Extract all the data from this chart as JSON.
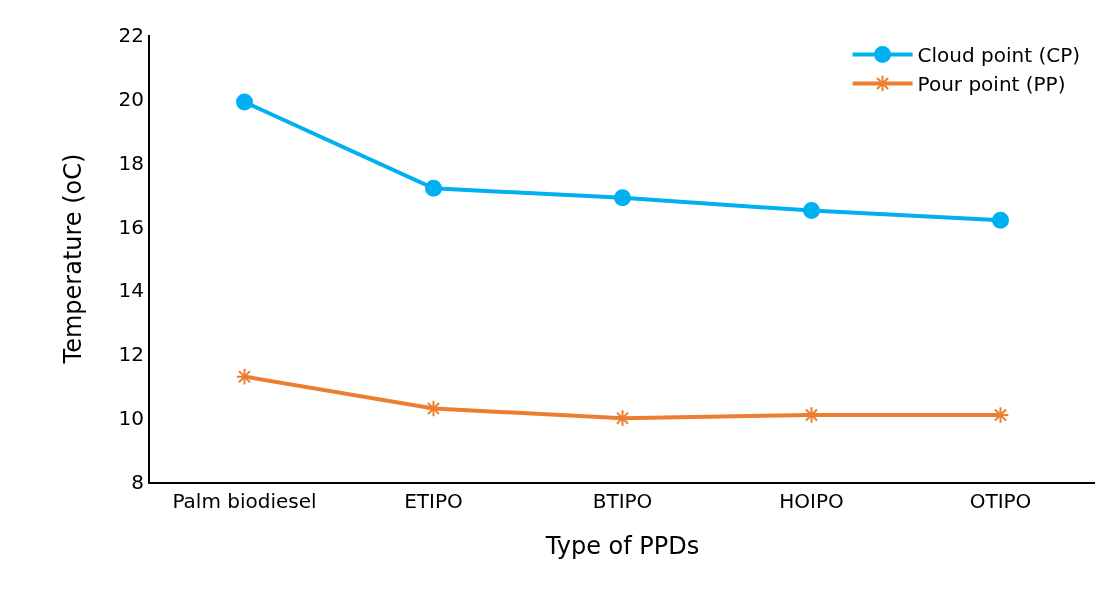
{
  "chart_data": {
    "type": "line",
    "xlabel": "Type of PPDs",
    "ylabel": "Temperature (oC)",
    "categories": [
      "Palm biodiesel",
      "ETIPO",
      "BTIPO",
      "HOIPO",
      "OTIPO"
    ],
    "series": [
      {
        "name": "Cloud point (CP)",
        "color": "#00b0f0",
        "marker": "circle",
        "values": [
          19.9,
          17.2,
          16.9,
          16.5,
          16.2
        ]
      },
      {
        "name": "Pour point (PP)",
        "color": "#ed7d31",
        "marker": "cross",
        "values": [
          11.3,
          10.3,
          10.0,
          10.1,
          10.1
        ]
      }
    ],
    "ylim": [
      8,
      22
    ],
    "yticks": [
      8,
      10,
      12,
      14,
      16,
      18,
      20,
      22
    ],
    "grid": false,
    "legend": "top right",
    "line_style": "solid"
  }
}
